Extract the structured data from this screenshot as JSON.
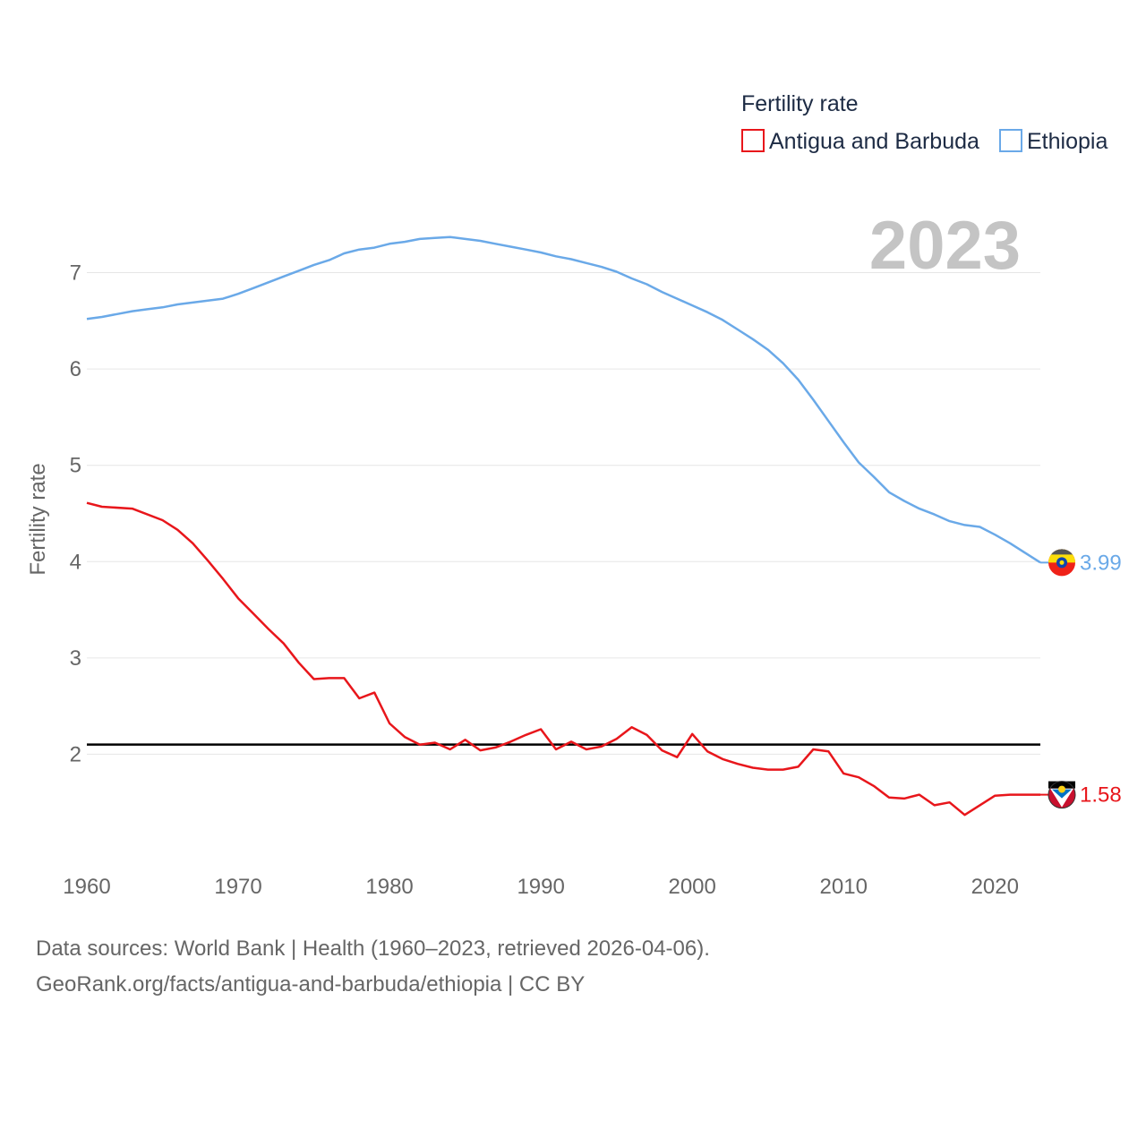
{
  "chart_data": {
    "type": "line",
    "title": "",
    "ylabel": "Fertility rate",
    "xlabel": "",
    "year_label": "2023",
    "xlim": [
      1960,
      2023
    ],
    "ylim": [
      1.0,
      7.6
    ],
    "x_ticks": [
      1960,
      1970,
      1980,
      1990,
      2000,
      2010,
      2020
    ],
    "y_ticks": [
      2,
      3,
      4,
      5,
      6,
      7
    ],
    "reference_line": 2.1,
    "legend": {
      "title": "Fertility rate",
      "placement": "top-right"
    },
    "series": [
      {
        "name": "Antigua and Barbuda",
        "color": "#e8161b",
        "end_label": "1.58",
        "x": [
          1960,
          1961,
          1963,
          1965,
          1966,
          1967,
          1968,
          1969,
          1970,
          1971,
          1972,
          1973,
          1974,
          1975,
          1976,
          1977,
          1978,
          1979,
          1980,
          1981,
          1982,
          1983,
          1984,
          1985,
          1986,
          1987,
          1988,
          1989,
          1990,
          1991,
          1992,
          1993,
          1994,
          1995,
          1996,
          1997,
          1998,
          1999,
          2000,
          2001,
          2002,
          2003,
          2004,
          2005,
          2006,
          2007,
          2008,
          2009,
          2010,
          2011,
          2012,
          2013,
          2014,
          2015,
          2016,
          2017,
          2018,
          2019,
          2020,
          2021,
          2022,
          2023
        ],
        "values": [
          4.61,
          4.57,
          4.55,
          4.43,
          4.33,
          4.19,
          4.01,
          3.82,
          3.62,
          3.46,
          3.3,
          3.15,
          2.95,
          2.78,
          2.79,
          2.79,
          2.58,
          2.64,
          2.32,
          2.18,
          2.1,
          2.12,
          2.05,
          2.15,
          2.04,
          2.07,
          2.13,
          2.2,
          2.26,
          2.05,
          2.13,
          2.05,
          2.08,
          2.16,
          2.28,
          2.2,
          2.04,
          1.97,
          2.21,
          2.03,
          1.95,
          1.9,
          1.86,
          1.84,
          1.84,
          1.87,
          2.05,
          2.03,
          1.8,
          1.76,
          1.67,
          1.55,
          1.54,
          1.58,
          1.47,
          1.5,
          1.37,
          1.47,
          1.57,
          1.58,
          1.58,
          1.58
        ]
      },
      {
        "name": "Ethiopia",
        "color": "#6aa9e8",
        "end_label": "3.99",
        "x": [
          1960,
          1961,
          1962,
          1963,
          1964,
          1965,
          1966,
          1967,
          1968,
          1969,
          1970,
          1971,
          1972,
          1973,
          1974,
          1975,
          1976,
          1977,
          1978,
          1979,
          1980,
          1981,
          1982,
          1983,
          1984,
          1985,
          1986,
          1987,
          1988,
          1989,
          1990,
          1991,
          1992,
          1993,
          1994,
          1995,
          1996,
          1997,
          1998,
          1999,
          2000,
          2001,
          2002,
          2003,
          2004,
          2005,
          2006,
          2007,
          2008,
          2009,
          2010,
          2011,
          2012,
          2013,
          2014,
          2015,
          2016,
          2017,
          2018,
          2019,
          2020,
          2021,
          2022,
          2023
        ],
        "values": [
          6.52,
          6.54,
          6.57,
          6.6,
          6.62,
          6.64,
          6.67,
          6.69,
          6.71,
          6.73,
          6.78,
          6.84,
          6.9,
          6.96,
          7.02,
          7.08,
          7.13,
          7.2,
          7.24,
          7.26,
          7.3,
          7.32,
          7.35,
          7.36,
          7.37,
          7.35,
          7.33,
          7.3,
          7.27,
          7.24,
          7.21,
          7.17,
          7.14,
          7.1,
          7.06,
          7.01,
          6.94,
          6.88,
          6.8,
          6.73,
          6.66,
          6.59,
          6.51,
          6.41,
          6.31,
          6.2,
          6.06,
          5.89,
          5.68,
          5.46,
          5.24,
          5.03,
          4.88,
          4.72,
          4.63,
          4.55,
          4.49,
          4.42,
          4.38,
          4.36,
          4.28,
          4.19,
          4.09,
          3.99
        ]
      }
    ]
  },
  "footer": {
    "sources": "Data sources: World Bank | Health (1960–2023, retrieved 2026-04-06).",
    "link": "GeoRank.org/facts/antigua-and-barbuda/ethiopia | CC BY"
  }
}
